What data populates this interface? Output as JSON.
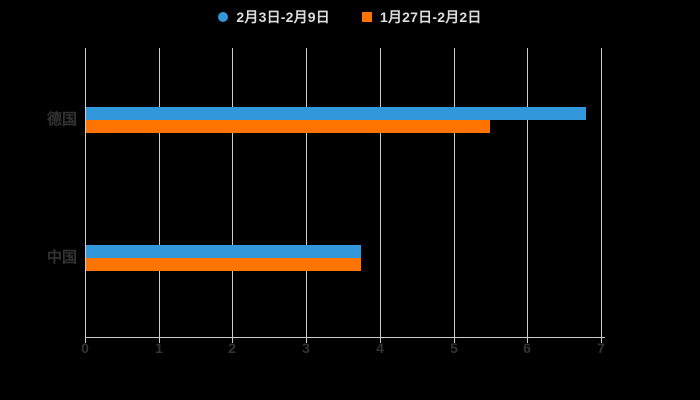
{
  "chart_data": {
    "type": "bar",
    "orientation": "horizontal",
    "title": "",
    "categories": [
      "德国",
      "中国"
    ],
    "series": [
      {
        "name": "2月3日-2月9日",
        "color": "#3398DB",
        "marker": "circle",
        "values": [
          6.8,
          3.75
        ]
      },
      {
        "name": "1月27日-2月2日",
        "color": "#FF7300",
        "marker": "square",
        "values": [
          5.5,
          3.75
        ]
      }
    ],
    "xlim": [
      0,
      7
    ],
    "x_ticks": [
      0,
      1,
      2,
      3,
      4,
      5,
      6,
      7
    ],
    "grid": true,
    "legend_position": "top",
    "colors": {
      "background": "#000000",
      "gridline": "#cccccc",
      "axis_line": "#cccccc",
      "axis_label": "#333333",
      "category_label": "#333333",
      "legend_text": "#dedede"
    }
  }
}
